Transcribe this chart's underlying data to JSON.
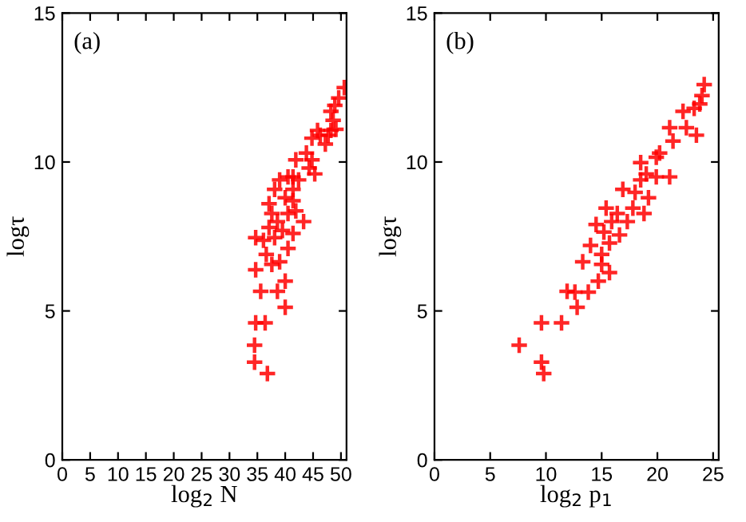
{
  "chart_data": [
    {
      "type": "scatter",
      "xlabel": "log$_{2}$ N",
      "ylabel": "logτ",
      "annotations": [
        "(a)"
      ],
      "xlim": [
        0,
        51
      ],
      "ylim": [
        0,
        15
      ],
      "xticks": [
        0,
        5,
        10,
        15,
        20,
        25,
        30,
        35,
        40,
        45,
        50
      ],
      "yticks": [
        0,
        5,
        10,
        15
      ],
      "grid": false,
      "legend": false,
      "marker": "cross",
      "series": [
        {
          "color": "#ff0000",
          "x": [
            50.6,
            49.6,
            48.9,
            48.2,
            48.6,
            49.1,
            48.2,
            45.8,
            46.3,
            47.7,
            44.8,
            47.2,
            43.8,
            44.8,
            41.9,
            44.3,
            45.3,
            39.0,
            40.5,
            41.4,
            42.4,
            41.4,
            38.1,
            37.1,
            40.0,
            41.4,
            37.6,
            40.5,
            41.9,
            43.3,
            38.6,
            37.1,
            39.5,
            41.4,
            34.7,
            36.1,
            38.1,
            40.5,
            36.6,
            39.0,
            37.6,
            34.7,
            40.0,
            35.6,
            38.6,
            40.0,
            34.7,
            36.4,
            34.5,
            34.5,
            36.8
          ],
          "values": [
            12.5,
            12.15,
            11.9,
            11.7,
            11.4,
            11.1,
            11.06,
            11.06,
            10.9,
            10.9,
            10.8,
            10.6,
            10.3,
            10.07,
            10.07,
            9.8,
            9.6,
            9.4,
            9.5,
            9.5,
            9.4,
            9.08,
            9.08,
            8.6,
            8.8,
            8.7,
            8.27,
            8.27,
            8.36,
            8.0,
            8.0,
            7.8,
            7.7,
            7.6,
            7.46,
            7.37,
            7.46,
            7.1,
            6.9,
            6.65,
            6.56,
            6.38,
            6.0,
            5.66,
            5.66,
            5.12,
            4.6,
            4.6,
            3.85,
            3.28,
            2.9
          ]
        }
      ]
    },
    {
      "type": "scatter",
      "xlabel": "log$_{2}$ p$_{1}$",
      "ylabel": "logτ",
      "annotations": [
        "(b)"
      ],
      "xlim": [
        0,
        25.5
      ],
      "ylim": [
        0,
        15
      ],
      "xticks": [
        0,
        5,
        10,
        15,
        20,
        25
      ],
      "yticks": [
        0,
        5,
        10,
        15
      ],
      "grid": false,
      "legend": false,
      "marker": "cross",
      "series": [
        {
          "color": "#ff0000",
          "x": [
            24.2,
            24.0,
            23.8,
            23.3,
            22.3,
            21.1,
            22.6,
            23.5,
            21.4,
            20.2,
            19.9,
            18.5,
            19.0,
            21.1,
            19.9,
            18.5,
            16.9,
            18.0,
            19.2,
            15.4,
            16.4,
            17.8,
            18.8,
            17.3,
            15.9,
            14.5,
            15.2,
            16.6,
            14.0,
            15.7,
            15.0,
            13.3,
            15.0,
            15.7,
            14.7,
            11.9,
            12.6,
            13.8,
            12.8,
            11.4,
            9.6,
            7.6,
            9.6,
            9.8
          ],
          "values": [
            12.6,
            12.23,
            11.95,
            11.8,
            11.7,
            11.15,
            11.15,
            10.9,
            10.7,
            10.3,
            10.16,
            9.98,
            9.6,
            9.5,
            9.5,
            9.4,
            9.08,
            8.98,
            8.8,
            8.45,
            8.27,
            8.45,
            8.27,
            8.0,
            8.0,
            7.9,
            7.65,
            7.55,
            7.2,
            7.28,
            6.9,
            6.65,
            6.56,
            6.29,
            6.0,
            5.66,
            5.63,
            5.63,
            5.12,
            4.6,
            4.6,
            3.85,
            3.28,
            2.9
          ]
        }
      ]
    }
  ]
}
